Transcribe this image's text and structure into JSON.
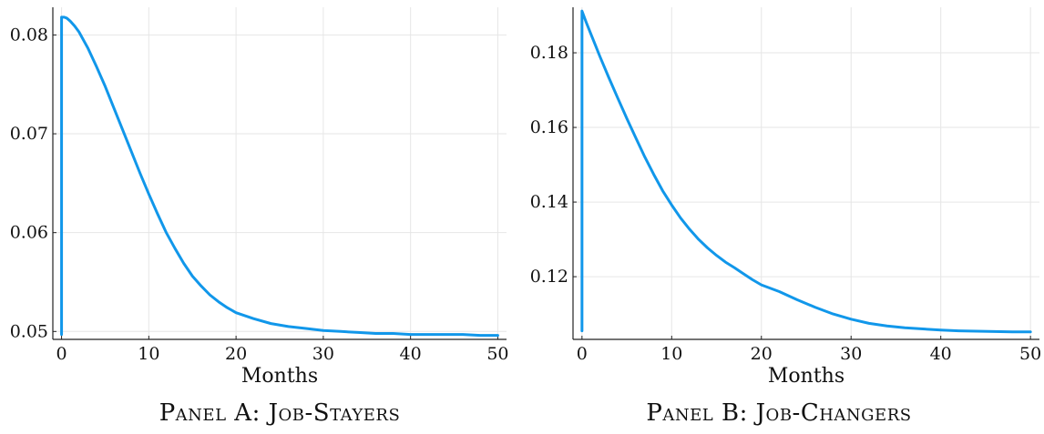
{
  "chart_data": [
    {
      "id": "A",
      "type": "line",
      "panel_label": "Panel A: Job-Stayers",
      "xlabel": "Months",
      "ylabel": "",
      "grid": true,
      "xlim": [
        -1,
        51
      ],
      "ylim": [
        0.0492,
        0.0828
      ],
      "xticks": [
        0,
        10,
        20,
        30,
        40,
        50
      ],
      "yticks": [
        0.05,
        0.06,
        0.07,
        0.08
      ],
      "ytick_labels": [
        "0.05",
        "0.06",
        "0.07",
        "0.08"
      ],
      "line_color": "#1197ea",
      "series": [
        {
          "x": [
            0,
            0.0,
            0.3,
            0.6,
            1,
            1.5,
            2,
            3,
            4,
            5,
            6,
            7,
            8,
            9,
            10,
            11,
            12,
            13,
            14,
            15,
            16,
            17,
            18,
            19,
            20,
            22,
            24,
            26,
            28,
            30,
            32,
            34,
            36,
            38,
            40,
            42,
            44,
            46,
            48,
            50
          ],
          "y": [
            0.0497,
            0.0818,
            0.0818,
            0.0817,
            0.0814,
            0.0809,
            0.0803,
            0.0787,
            0.0768,
            0.0748,
            0.0726,
            0.0704,
            0.0682,
            0.066,
            0.0639,
            0.0619,
            0.06,
            0.0584,
            0.0569,
            0.0556,
            0.0546,
            0.0537,
            0.053,
            0.0524,
            0.0519,
            0.0513,
            0.0508,
            0.0505,
            0.0503,
            0.0501,
            0.05,
            0.0499,
            0.0498,
            0.0498,
            0.0497,
            0.0497,
            0.0497,
            0.0497,
            0.0496,
            0.0496
          ]
        }
      ]
    },
    {
      "id": "B",
      "type": "line",
      "panel_label": "Panel B: Job-Changers",
      "xlabel": "Months",
      "ylabel": "",
      "grid": true,
      "xlim": [
        -1,
        51
      ],
      "ylim": [
        0.1032,
        0.1922
      ],
      "xticks": [
        0,
        10,
        20,
        30,
        40,
        50
      ],
      "yticks": [
        0.12,
        0.14,
        0.16,
        0.18
      ],
      "ytick_labels": [
        "0.12",
        "0.14",
        "0.16",
        "0.18"
      ],
      "line_color": "#1197ea",
      "series": [
        {
          "x": [
            0,
            0.0,
            0.5,
            1,
            1.5,
            2,
            3,
            4,
            5,
            6,
            7,
            8,
            9,
            10,
            11,
            12,
            13,
            14,
            15,
            16,
            17,
            18,
            19,
            20,
            22,
            24,
            26,
            28,
            30,
            32,
            34,
            36,
            38,
            40,
            42,
            44,
            46,
            48,
            50
          ],
          "y": [
            0.1055,
            0.1912,
            0.188,
            0.185,
            0.182,
            0.179,
            0.1733,
            0.1678,
            0.1624,
            0.1572,
            0.1521,
            0.1474,
            0.143,
            0.1392,
            0.1357,
            0.1327,
            0.13,
            0.1277,
            0.1257,
            0.1239,
            0.1224,
            0.1208,
            0.1192,
            0.1178,
            0.116,
            0.1138,
            0.1118,
            0.11,
            0.1086,
            0.1075,
            0.1068,
            0.1063,
            0.106,
            0.1057,
            0.1055,
            0.1054,
            0.1053,
            0.1052,
            0.1052
          ]
        }
      ]
    }
  ]
}
